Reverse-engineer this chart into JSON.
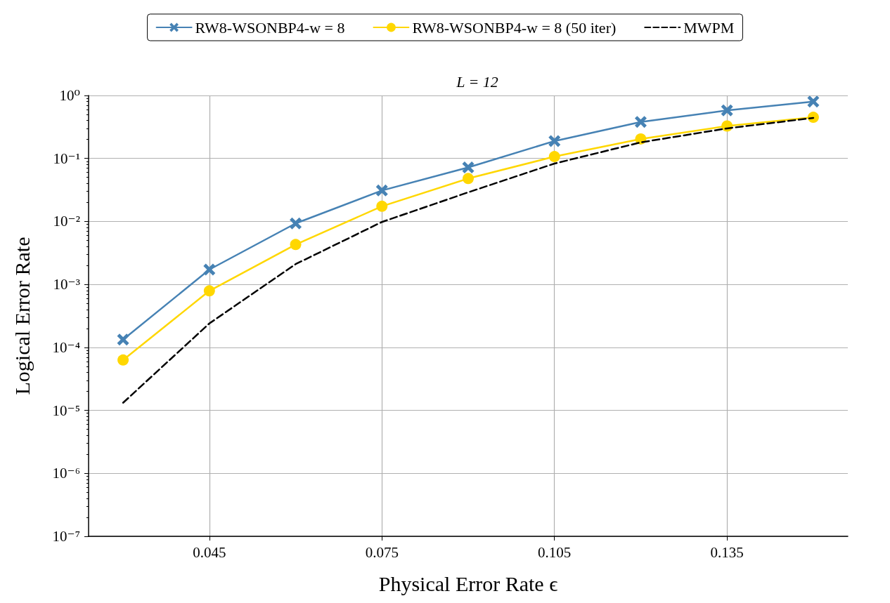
{
  "chart_data": {
    "type": "line",
    "title": "L = 12",
    "xlabel": "Physical Error Rate ϵ",
    "ylabel": "Logical Error Rate",
    "x": [
      0.03,
      0.045,
      0.06,
      0.075,
      0.09,
      0.105,
      0.12,
      0.135,
      0.15
    ],
    "series": [
      {
        "name": "RW8-WSONBP4-w = 8",
        "color": "#4682b4",
        "marker": "cross",
        "line_style": "solid",
        "values": [
          0.000133,
          0.00172,
          0.0093,
          0.031,
          0.072,
          0.189,
          0.38,
          0.58,
          0.8
        ]
      },
      {
        "name": "RW8-WSONBP4-w = 8 (50 iter)",
        "color": "#ffd700",
        "marker": "circle",
        "line_style": "solid",
        "values": [
          6.3e-05,
          0.00079,
          0.0043,
          0.0174,
          0.048,
          0.107,
          0.204,
          0.327,
          0.45
        ]
      },
      {
        "name": "MWPM",
        "color": "#000000",
        "marker": "none",
        "line_style": "dashed",
        "values": [
          1.32e-05,
          0.00024,
          0.0021,
          0.0098,
          0.029,
          0.083,
          0.18,
          0.3,
          0.44
        ]
      }
    ],
    "log": "y",
    "xlim": [
      0.024,
      0.156
    ],
    "xticks": [
      0.045,
      0.075,
      0.105,
      0.135
    ],
    "ylim": [
      1e-07,
      1
    ],
    "yticks": [
      {
        "value": 1e-07,
        "label": "10⁻⁷"
      },
      {
        "value": 1e-06,
        "label": "10⁻⁶"
      },
      {
        "value": 1e-05,
        "label": "10⁻⁵"
      },
      {
        "value": 0.0001,
        "label": "10⁻⁴"
      },
      {
        "value": 0.001,
        "label": "10⁻³"
      },
      {
        "value": 0.01,
        "label": "10⁻²"
      },
      {
        "value": 0.1,
        "label": "10⁻¹"
      },
      {
        "value": 1,
        "label": "10⁰"
      }
    ],
    "grid": true,
    "legend": "top"
  }
}
